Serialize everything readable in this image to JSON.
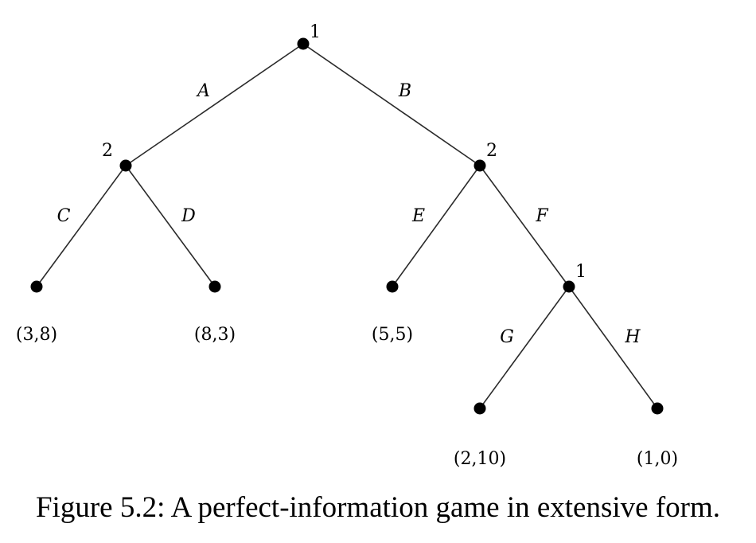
{
  "tree": {
    "nodes": [
      {
        "id": "root",
        "player": "1"
      },
      {
        "id": "left",
        "player": "2"
      },
      {
        "id": "right",
        "player": "2"
      },
      {
        "id": "rf",
        "player": "1"
      },
      {
        "id": "leafC",
        "player": ""
      },
      {
        "id": "leafD",
        "player": ""
      },
      {
        "id": "leafE",
        "player": ""
      },
      {
        "id": "leafG",
        "player": ""
      },
      {
        "id": "leafH",
        "player": ""
      }
    ],
    "edges": [
      {
        "from": "root",
        "to": "left",
        "action": "A"
      },
      {
        "from": "root",
        "to": "right",
        "action": "B"
      },
      {
        "from": "left",
        "to": "leafC",
        "action": "C"
      },
      {
        "from": "left",
        "to": "leafD",
        "action": "D"
      },
      {
        "from": "right",
        "to": "leafE",
        "action": "E"
      },
      {
        "from": "right",
        "to": "rf",
        "action": "F"
      },
      {
        "from": "rf",
        "to": "leafG",
        "action": "G"
      },
      {
        "from": "rf",
        "to": "leafH",
        "action": "H"
      }
    ],
    "payoffs": [
      {
        "leaf": "leafC",
        "text": "(3,8)"
      },
      {
        "leaf": "leafD",
        "text": "(8,3)"
      },
      {
        "leaf": "leafE",
        "text": "(5,5)"
      },
      {
        "leaf": "leafG",
        "text": "(2,10)"
      },
      {
        "leaf": "leafH",
        "text": "(1,0)"
      }
    ]
  },
  "caption": "Figure 5.2: A perfect-information game in extensive form.",
  "colors": {
    "edge": "#2a2a2a",
    "node": "#000000"
  }
}
